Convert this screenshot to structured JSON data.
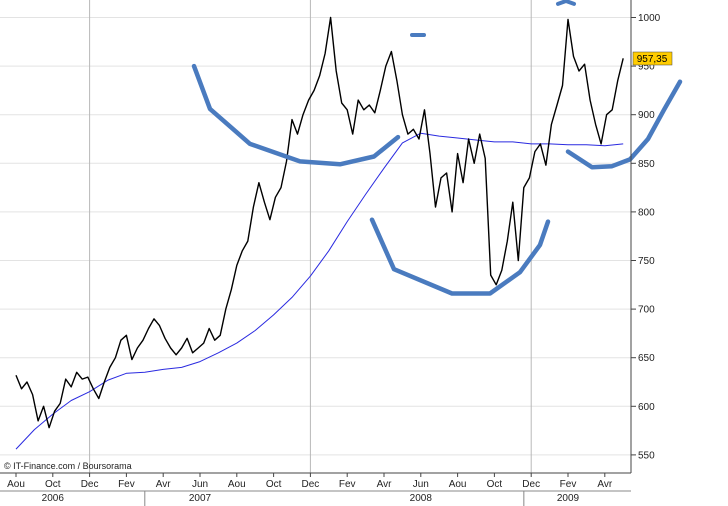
{
  "chart_data": {
    "type": "line",
    "credit": "© IT-Finance.com / Boursorama",
    "last_value_label": "957,35",
    "ylim": [
      535,
      1015
    ],
    "y_ticks": [
      550,
      600,
      650,
      700,
      750,
      800,
      850,
      900,
      950,
      1000
    ],
    "grid": "horizontal-and-year-separators",
    "x_months": [
      "Aou",
      "Oct",
      "Dec",
      "Fev",
      "Avr",
      "Jun",
      "Aou",
      "Oct",
      "Dec",
      "Fev",
      "Avr",
      "Jun",
      "Aou",
      "Oct",
      "Dec",
      "Fev",
      "Avr"
    ],
    "x_years": [
      "2006",
      "2007",
      "2008",
      "2009"
    ],
    "colors": {
      "price": "#000000",
      "average": "#2a2ae0",
      "annotation": "#4a7bbf",
      "last_label_bg": "#ffcc00"
    },
    "series": [
      {
        "style": "price",
        "x": [
          0,
          0.15,
          0.3,
          0.45,
          0.6,
          0.75,
          0.9,
          1.05,
          1.2,
          1.35,
          1.5,
          1.65,
          1.8,
          1.95,
          2.1,
          2.25,
          2.4,
          2.55,
          2.7,
          2.85,
          3,
          3.15,
          3.3,
          3.45,
          3.6,
          3.75,
          3.9,
          4.05,
          4.2,
          4.35,
          4.5,
          4.65,
          4.8,
          4.95,
          5.1,
          5.25,
          5.4,
          5.55,
          5.7,
          5.85,
          6,
          6.15,
          6.3,
          6.45,
          6.6,
          6.75,
          6.9,
          7.05,
          7.2,
          7.35,
          7.5,
          7.65,
          7.8,
          7.95,
          8.1,
          8.25,
          8.4,
          8.55,
          8.7,
          8.85,
          9,
          9.15,
          9.3,
          9.45,
          9.6,
          9.75,
          9.9,
          10.05,
          10.2,
          10.35,
          10.5,
          10.65,
          10.8,
          10.95,
          11.1,
          11.25,
          11.4,
          11.55,
          11.7,
          11.85,
          12,
          12.15,
          12.3,
          12.45,
          12.6,
          12.75,
          12.9,
          13.05,
          13.2,
          13.35,
          13.5,
          13.65,
          13.8,
          13.95,
          14.1,
          14.25,
          14.4,
          14.55,
          14.7,
          14.85,
          15,
          15.15,
          15.3,
          15.45,
          15.6,
          15.75,
          15.9,
          16.05,
          16.2,
          16.35,
          16.5
        ],
        "values": [
          632,
          618,
          625,
          612,
          585,
          600,
          578,
          595,
          603,
          628,
          620,
          635,
          628,
          630,
          618,
          608,
          625,
          640,
          650,
          668,
          673,
          648,
          660,
          668,
          680,
          690,
          683,
          670,
          660,
          653,
          660,
          670,
          655,
          660,
          665,
          680,
          668,
          673,
          700,
          720,
          745,
          760,
          770,
          805,
          830,
          810,
          792,
          815,
          825,
          852,
          895,
          880,
          900,
          915,
          925,
          940,
          963,
          1000,
          945,
          912,
          905,
          880,
          915,
          905,
          910,
          902,
          925,
          950,
          965,
          935,
          900,
          880,
          885,
          875,
          905,
          860,
          805,
          835,
          840,
          800,
          860,
          830,
          875,
          850,
          880,
          855,
          735,
          725,
          740,
          770,
          810,
          750,
          825,
          835,
          862,
          870,
          848,
          890,
          910,
          930,
          998,
          960,
          945,
          952,
          915,
          890,
          870,
          900,
          905,
          935,
          958
        ],
        "note": "x is position in months from the first axis label (Aou 2006 = 0, each label step = 2 months)"
      },
      {
        "style": "average",
        "x": [
          0,
          0.5,
          1,
          1.5,
          2,
          2.5,
          3,
          3.5,
          4,
          4.5,
          5,
          5.5,
          6,
          6.5,
          7,
          7.5,
          8,
          8.5,
          9,
          9.5,
          10,
          10.5,
          11,
          11.5,
          12,
          12.5,
          13,
          13.5,
          14,
          14.5,
          15,
          15.5,
          16,
          16.5
        ],
        "values": [
          556,
          576,
          592,
          606,
          615,
          627,
          634,
          635,
          638,
          640,
          646,
          655,
          665,
          678,
          694,
          712,
          734,
          760,
          790,
          818,
          845,
          871,
          881,
          878,
          876,
          874,
          872,
          872,
          870,
          870,
          869,
          869,
          868,
          870
        ]
      }
    ]
  },
  "annotations": [
    {
      "shape": "cup",
      "points": [
        [
          0.97,
          950
        ],
        [
          1.05,
          906
        ],
        [
          1.25,
          870
        ],
        [
          1.5,
          852
        ],
        [
          1.7,
          849
        ],
        [
          1.87,
          857
        ],
        [
          1.99,
          877
        ]
      ]
    },
    {
      "shape": "cup",
      "points": [
        [
          1.86,
          792
        ],
        [
          1.97,
          741
        ],
        [
          2.26,
          716
        ],
        [
          2.45,
          716
        ],
        [
          2.6,
          738
        ],
        [
          2.7,
          766
        ],
        [
          2.74,
          790
        ]
      ]
    },
    {
      "shape": "cup",
      "points": [
        [
          2.84,
          862
        ],
        [
          2.96,
          846
        ],
        [
          3.06,
          847
        ],
        [
          3.15,
          854
        ],
        [
          3.24,
          875
        ],
        [
          3.32,
          905
        ],
        [
          3.4,
          934
        ]
      ]
    },
    {
      "shape": "dash",
      "points": [
        [
          2.06,
          982
        ],
        [
          2.12,
          982
        ]
      ]
    },
    {
      "shape": "hook",
      "points": [
        [
          2.79,
          1014
        ],
        [
          2.83,
          1017
        ],
        [
          2.87,
          1014
        ]
      ]
    }
  ]
}
